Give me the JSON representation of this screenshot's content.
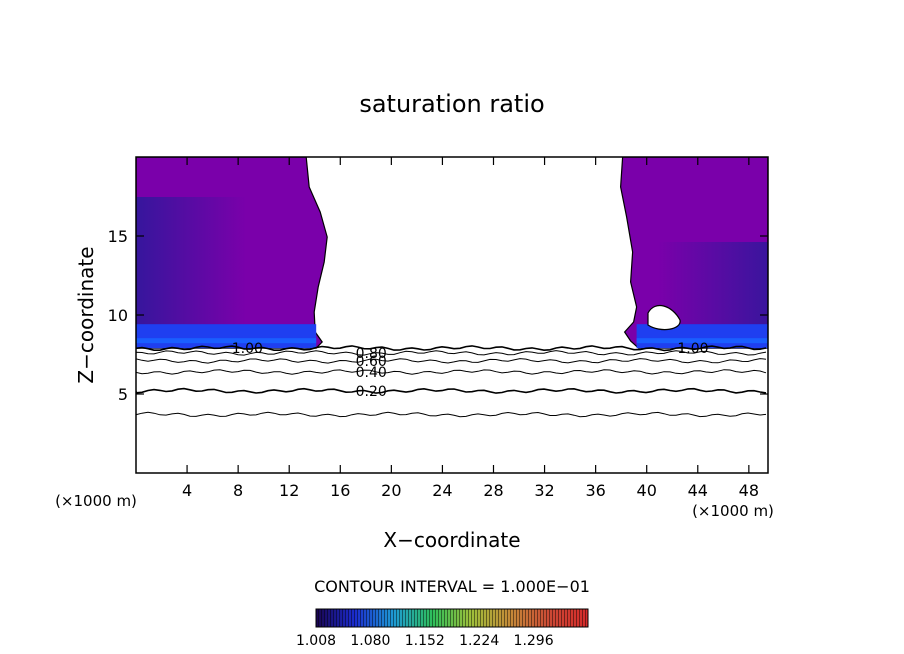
{
  "chart_data": {
    "type": "heatmap",
    "title": "saturation ratio",
    "xlabel": "X−coordinate",
    "ylabel": "Z−coordinate",
    "x_unit_left": "(×1000 m)",
    "x_unit_right": "(×1000 m)",
    "xlim": [
      0,
      49.5
    ],
    "ylim": [
      0,
      20
    ],
    "x_ticks": [
      4,
      8,
      12,
      16,
      20,
      24,
      28,
      32,
      36,
      40,
      44,
      48
    ],
    "y_ticks": [
      5,
      10,
      15
    ],
    "contour_interval_text": "CONTOUR INTERVAL = 1.000E−01",
    "colorbar": {
      "range": [
        1.008,
        1.368
      ],
      "tick_labels": [
        "1.008",
        "1.080",
        "1.152",
        "1.224",
        "1.296"
      ],
      "tick_values": [
        1.008,
        1.08,
        1.152,
        1.224,
        1.296
      ],
      "colors": [
        "#1a0550",
        "#1b2ccf",
        "#1e9bd4",
        "#2fbf5a",
        "#9fbf3a",
        "#c58a38",
        "#cc4a35",
        "#d62a2a"
      ]
    },
    "filled_regions": [
      {
        "name": "left-moist-region",
        "x_range": [
          0,
          13.8
        ],
        "z_range": [
          7.9,
          20
        ],
        "color": "#7a00aa"
      },
      {
        "name": "right-moist-region",
        "x_range": [
          37.8,
          49.5
        ],
        "z_range": [
          7.9,
          20
        ],
        "color": "#7a00aa"
      }
    ],
    "contours": [
      {
        "label": "1.00",
        "z": 7.9,
        "label_x": [
          7.5,
          42.4
        ]
      },
      {
        "label": "0.80",
        "z": 7.6,
        "label_x": [
          17.2
        ]
      },
      {
        "label": "0.60",
        "z": 7.1,
        "label_x": [
          17.2
        ]
      },
      {
        "label": "0.40",
        "z": 6.4,
        "label_x": [
          17.2
        ]
      },
      {
        "label": "0.20",
        "z": 5.2,
        "label_x": [
          17.2
        ]
      },
      {
        "label": "",
        "z": 3.7,
        "label_x": []
      }
    ]
  },
  "colors": {
    "background": "#ffffff",
    "deep_purple": "#7a00aa",
    "blue_band": "#1f3ff0"
  }
}
